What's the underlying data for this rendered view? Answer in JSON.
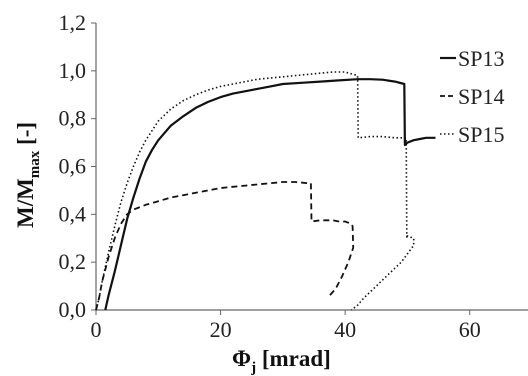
{
  "chart_data": {
    "type": "line",
    "xlabel": {
      "main": "Φ",
      "sub": "j",
      "rest": " [mrad]"
    },
    "ylabel": {
      "main": "M/M",
      "sub": "max",
      "rest": " [-]"
    },
    "xlim": [
      0,
      70
    ],
    "ylim": [
      0,
      1.2
    ],
    "x_ticks": [
      "0",
      "20",
      "40",
      "60"
    ],
    "x_tick_values": [
      0,
      20,
      40,
      60
    ],
    "y_ticks": [
      "0,0",
      "0,2",
      "0,4",
      "0,6",
      "0,8",
      "1,0",
      "1,2"
    ],
    "y_tick_values": [
      0,
      0.2,
      0.4,
      0.6,
      0.8,
      1.0,
      1.2
    ],
    "grid": false,
    "legend_position": "right",
    "series": [
      {
        "name": "SP13",
        "style": "solid",
        "x": [
          1.5,
          2,
          3,
          4,
          5,
          6,
          7,
          8,
          9,
          10,
          12,
          14,
          16,
          18,
          20,
          22,
          24,
          26,
          28,
          30,
          33,
          36,
          39,
          42,
          44,
          46,
          48,
          49.5,
          49.6,
          50,
          51,
          52,
          53,
          54.5
        ],
        "y": [
          0.0,
          0.06,
          0.16,
          0.27,
          0.38,
          0.47,
          0.55,
          0.62,
          0.67,
          0.71,
          0.77,
          0.81,
          0.845,
          0.87,
          0.89,
          0.905,
          0.915,
          0.925,
          0.935,
          0.945,
          0.95,
          0.955,
          0.96,
          0.965,
          0.965,
          0.963,
          0.955,
          0.945,
          0.69,
          0.7,
          0.71,
          0.715,
          0.72,
          0.72
        ]
      },
      {
        "name": "SP14",
        "style": "dashed",
        "x": [
          0,
          0.5,
          1,
          2,
          3,
          4,
          5,
          6,
          8,
          10,
          12,
          14,
          16,
          18,
          20,
          22,
          24,
          26,
          28,
          30,
          32,
          34,
          34.5,
          34.6,
          36,
          38,
          39,
          40,
          41,
          41.2,
          41.3,
          40.5,
          39.5,
          38.5,
          37.5
        ],
        "y": [
          0.0,
          0.05,
          0.12,
          0.22,
          0.3,
          0.36,
          0.4,
          0.42,
          0.44,
          0.455,
          0.47,
          0.48,
          0.49,
          0.5,
          0.51,
          0.515,
          0.52,
          0.525,
          0.53,
          0.535,
          0.535,
          0.53,
          0.53,
          0.37,
          0.375,
          0.375,
          0.37,
          0.37,
          0.36,
          0.35,
          0.26,
          0.2,
          0.14,
          0.09,
          0.06
        ]
      },
      {
        "name": "SP15",
        "style": "dotted",
        "x": [
          0,
          0.5,
          1,
          2,
          3,
          4,
          5,
          6,
          7,
          8,
          10,
          12,
          14,
          16,
          18,
          20,
          22,
          24,
          26,
          28,
          30,
          32,
          34,
          36,
          38,
          40,
          42,
          42.1,
          44,
          46,
          48,
          49.8,
          49.9,
          50,
          51,
          51,
          49,
          47,
          45,
          43,
          42,
          41
        ],
        "y": [
          0.0,
          0.05,
          0.12,
          0.24,
          0.35,
          0.45,
          0.53,
          0.6,
          0.66,
          0.71,
          0.79,
          0.84,
          0.875,
          0.9,
          0.92,
          0.935,
          0.945,
          0.955,
          0.965,
          0.97,
          0.975,
          0.98,
          0.985,
          0.99,
          0.995,
          0.995,
          0.98,
          0.72,
          0.725,
          0.725,
          0.72,
          0.72,
          0.3,
          0.31,
          0.3,
          0.27,
          0.2,
          0.15,
          0.1,
          0.05,
          0.02,
          0.0
        ]
      }
    ]
  }
}
